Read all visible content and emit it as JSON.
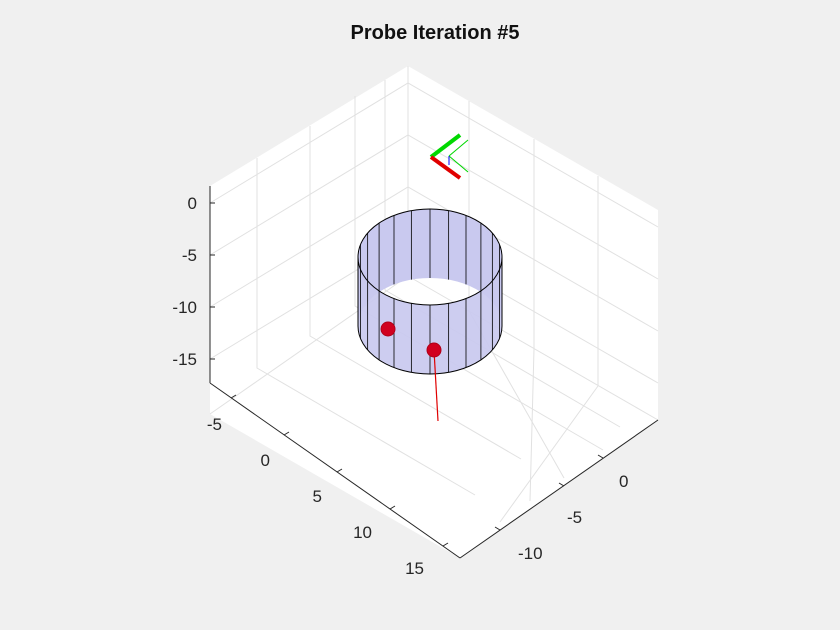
{
  "figure": {
    "background": "#f0f0f0",
    "axes_background": "#ffffff"
  },
  "chart_data": {
    "type": "scatter",
    "title": "Probe Iteration #5",
    "projection": "3d",
    "grid": true,
    "xlim": [
      -7,
      17
    ],
    "ylim": [
      -14,
      3
    ],
    "zlim": [
      -18,
      2
    ],
    "x_ticks": [
      "-5",
      "0",
      "5",
      "10",
      "15"
    ],
    "y_ticks": [
      "-10",
      "-5",
      "0"
    ],
    "z_ticks": [
      "0",
      "-5",
      "-10",
      "-15"
    ],
    "xlabel": "",
    "ylabel": "",
    "zlabel": "",
    "cylinder": {
      "face_color": "#c9c9ef",
      "edge_color": "#000000",
      "segments": 24
    },
    "probe_points": [
      {
        "color": "#d1001f"
      },
      {
        "color": "#d1001f"
      }
    ],
    "probe_line_color": "#e00000",
    "frame_axes": {
      "x_color": "#e00000",
      "y_color": "#00d800"
    }
  }
}
